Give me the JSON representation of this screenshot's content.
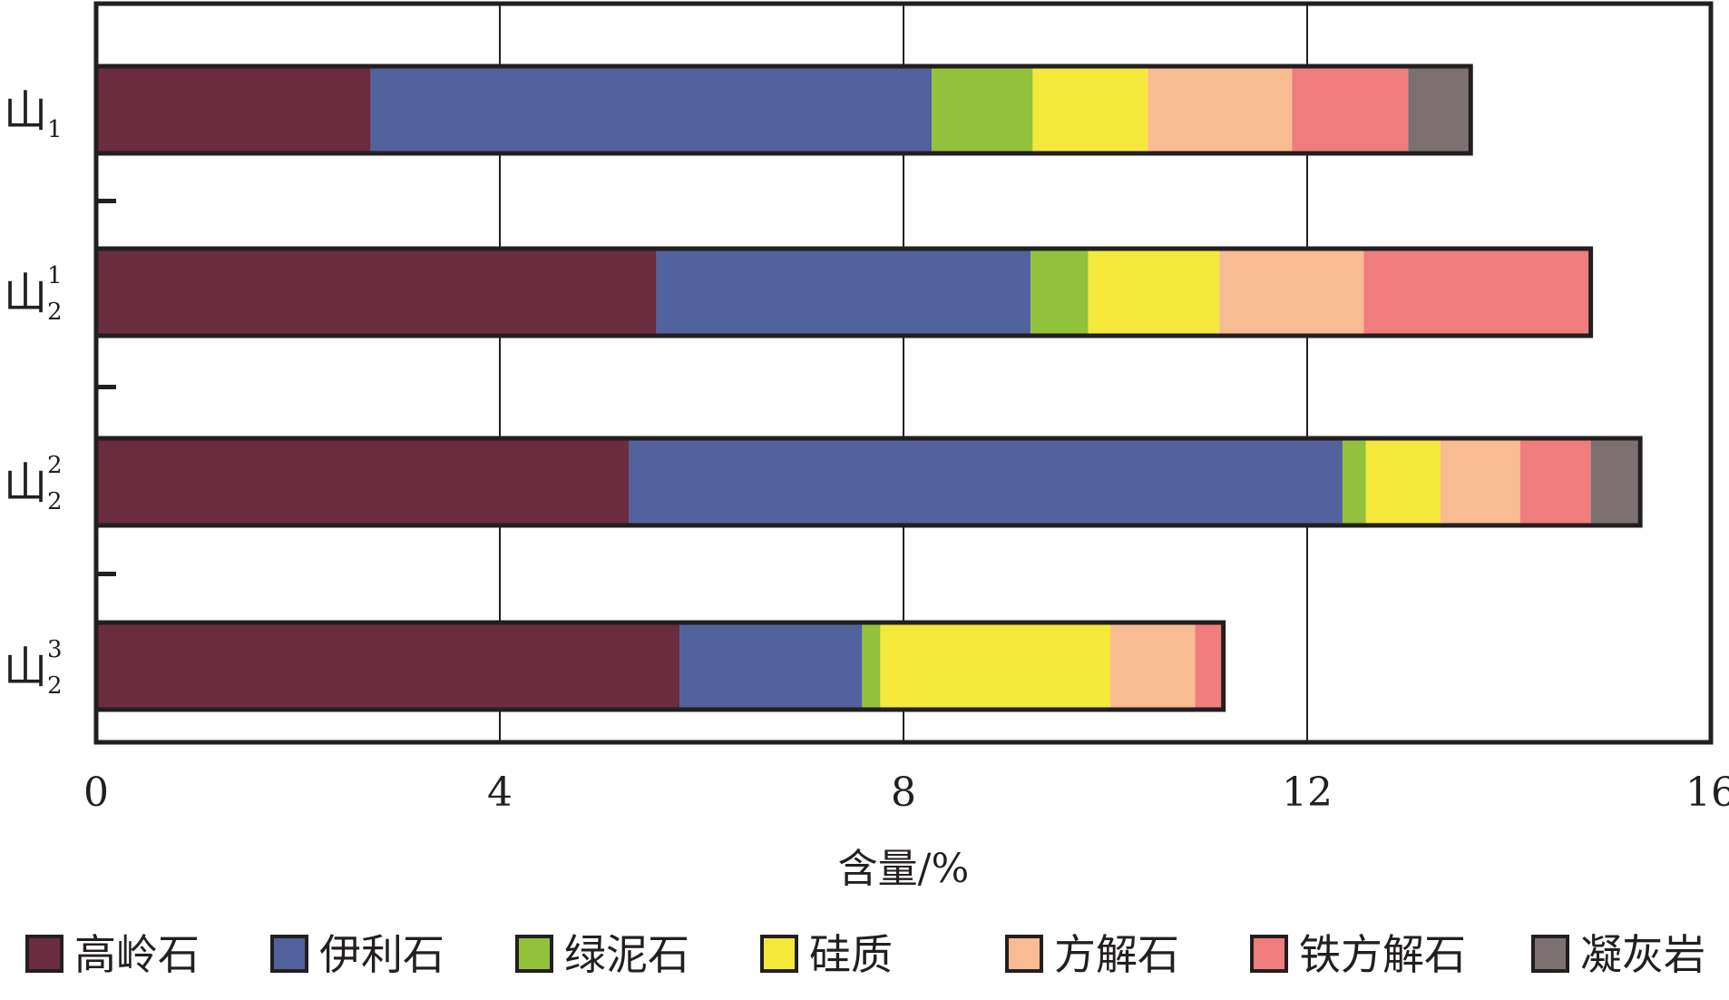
{
  "chart_data": {
    "type": "bar",
    "orientation": "horizontal",
    "stacked": true,
    "categories": [
      {
        "base": "山",
        "sub": "1",
        "sup": ""
      },
      {
        "base": "山",
        "sub": "2",
        "sup": "1"
      },
      {
        "base": "山",
        "sub": "2",
        "sup": "2"
      },
      {
        "base": "山",
        "sub": "2",
        "sup": "3"
      }
    ],
    "series": [
      {
        "name": "高岭石",
        "color": "#6a2c3e",
        "values": [
          2.72,
          5.55,
          5.28,
          5.78
        ]
      },
      {
        "name": "伊利石",
        "color": "#52629e",
        "values": [
          5.56,
          3.71,
          7.07,
          1.81
        ]
      },
      {
        "name": "绿泥石",
        "color": "#92c13b",
        "values": [
          1.0,
          0.57,
          0.23,
          0.18
        ]
      },
      {
        "name": "硅质",
        "color": "#f4e93a",
        "values": [
          1.14,
          1.3,
          0.74,
          2.28
        ]
      },
      {
        "name": "方解石",
        "color": "#f8bb92",
        "values": [
          1.43,
          1.43,
          0.79,
          0.84
        ]
      },
      {
        "name": "铁方解石",
        "color": "#f07d7d",
        "values": [
          1.15,
          2.25,
          0.7,
          0.28
        ]
      },
      {
        "name": "凝灰岩",
        "color": "#7c7170",
        "values": [
          0.62,
          0,
          0.49,
          0
        ]
      }
    ],
    "xlabel": "含量/%",
    "ylabel": "",
    "xlim": [
      0,
      16
    ],
    "xticks": [
      0,
      4,
      8,
      12,
      16
    ],
    "grid": "vertical",
    "legend": "bottom"
  }
}
